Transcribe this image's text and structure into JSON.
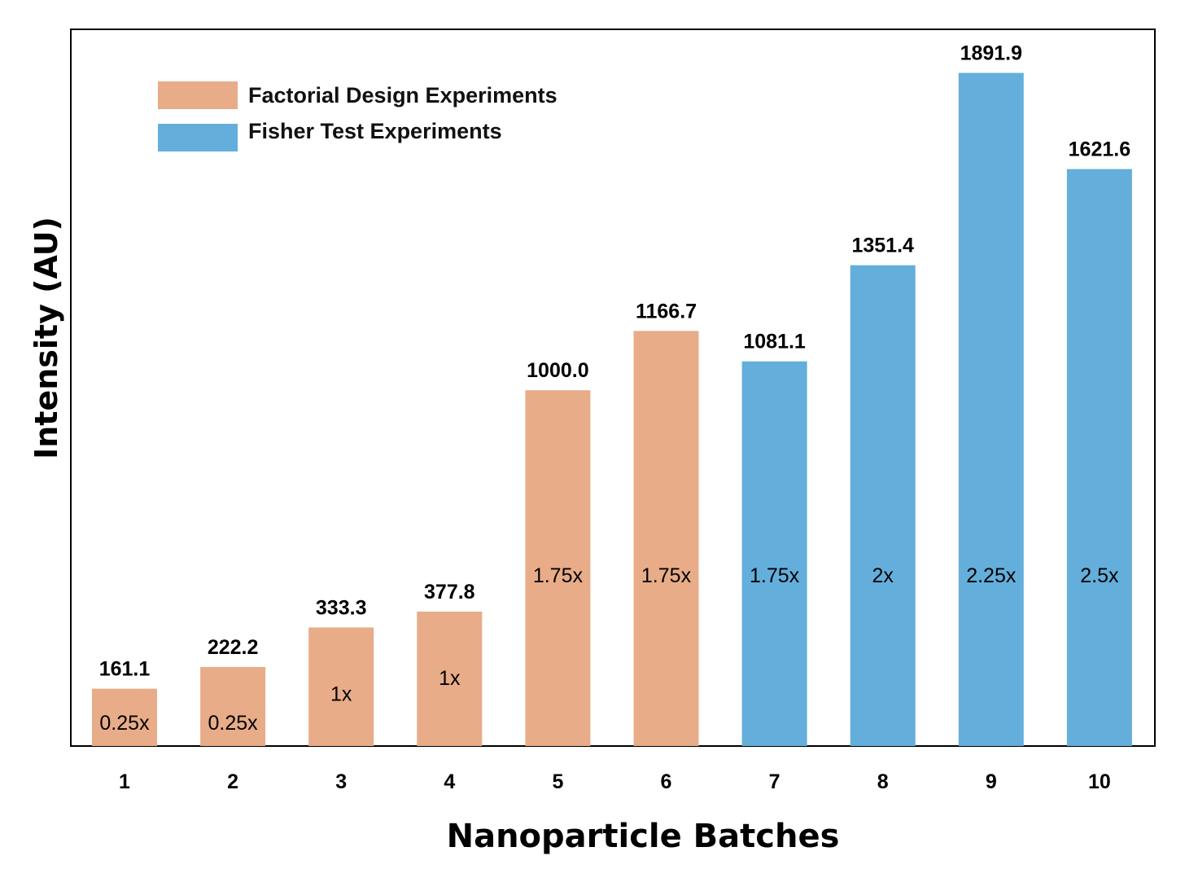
{
  "chart_data": {
    "type": "bar",
    "xlabel": "Nanoparticle Batches",
    "ylabel": "Intensity (AU)",
    "ylim": [
      0,
      1950
    ],
    "grid": false,
    "legend_position": "top-left",
    "categories": [
      "1",
      "2",
      "3",
      "4",
      "5",
      "6",
      "7",
      "8",
      "9",
      "10"
    ],
    "series": [
      {
        "name": "Factorial Design Experiments",
        "color": "#E8AC88",
        "points": [
          {
            "category": "1",
            "value": 161.1,
            "label": "161.1",
            "multiplier": "0.25x"
          },
          {
            "category": "2",
            "value": 222.2,
            "label": "222.2",
            "multiplier": "0.25x"
          },
          {
            "category": "3",
            "value": 333.3,
            "label": "333.3",
            "multiplier": "1x"
          },
          {
            "category": "4",
            "value": 377.8,
            "label": "377.8",
            "multiplier": "1x"
          },
          {
            "category": "5",
            "value": 1000.0,
            "label": "1000.0",
            "multiplier": "1.75x"
          },
          {
            "category": "6",
            "value": 1166.7,
            "label": "1166.7",
            "multiplier": "1.75x"
          }
        ]
      },
      {
        "name": "Fisher Test Experiments",
        "color": "#64AEDB",
        "points": [
          {
            "category": "7",
            "value": 1081.1,
            "label": "1081.1",
            "multiplier": "1.75x"
          },
          {
            "category": "8",
            "value": 1351.4,
            "label": "1351.4",
            "multiplier": "2x"
          },
          {
            "category": "9",
            "value": 1891.9,
            "label": "1891.9",
            "multiplier": "2.25x"
          },
          {
            "category": "10",
            "value": 1621.6,
            "label": "1621.6",
            "multiplier": "2.5x"
          }
        ]
      }
    ]
  }
}
